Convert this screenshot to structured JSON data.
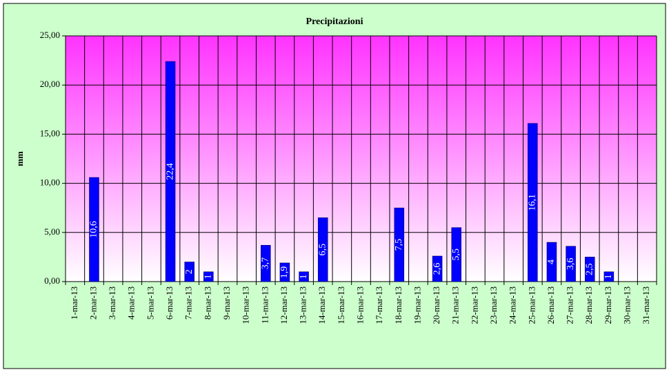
{
  "chart_data": {
    "type": "bar",
    "title": "Precipitazioni",
    "y_label": "mm",
    "categories": [
      "1-mar-13",
      "2-mar-13",
      "3-mar-13",
      "4-mar-13",
      "5-mar-13",
      "6-mar-13",
      "7-mar-13",
      "8-mar-13",
      "9-mar-13",
      "10-mar-13",
      "11-mar-13",
      "12-mar-13",
      "13-mar-13",
      "14-mar-13",
      "15-mar-13",
      "16-mar-13",
      "17-mar-13",
      "18-mar-13",
      "19-mar-13",
      "20-mar-13",
      "21-mar-13",
      "22-mar-13",
      "23-mar-13",
      "24-mar-13",
      "25-mar-13",
      "26-mar-13",
      "27-mar-13",
      "28-mar-13",
      "29-mar-13",
      "30-mar-13",
      "31-mar-13"
    ],
    "values": [
      null,
      10.6,
      null,
      null,
      null,
      22.4,
      2,
      1,
      null,
      null,
      3.7,
      1.9,
      1,
      6.5,
      null,
      null,
      null,
      7.5,
      null,
      2.6,
      5.5,
      null,
      null,
      null,
      16.1,
      4,
      3.6,
      2.5,
      1,
      null,
      null
    ],
    "value_labels": [
      null,
      "10,6",
      null,
      null,
      null,
      "22,4",
      "2",
      "1",
      null,
      null,
      "3,7",
      "1,9",
      "1",
      "6,5",
      null,
      null,
      null,
      "7,5",
      null,
      "2,6",
      "5,5",
      null,
      null,
      null,
      "16,1",
      "4",
      "3,6",
      "2,5",
      "1",
      null,
      null
    ],
    "color": "#0000ff",
    "ylim": [
      0,
      25
    ],
    "yticks": [
      {
        "value": 0,
        "label": "0,00"
      },
      {
        "value": 5,
        "label": "5,00"
      },
      {
        "value": 10,
        "label": "10,00"
      },
      {
        "value": 15,
        "label": "15,00"
      },
      {
        "value": 20,
        "label": "20,00"
      },
      {
        "value": 25,
        "label": "25,00"
      }
    ],
    "grid": true
  }
}
